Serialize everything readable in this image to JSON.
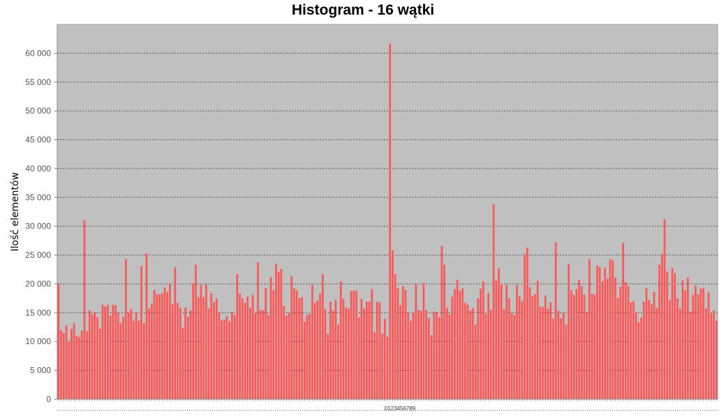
{
  "chart_data": {
    "type": "bar",
    "title": "Histogram - 16 wątki",
    "ylabel": "Ilość elementów",
    "xlabel": "",
    "x_tick_text": "0123456789",
    "ylim": [
      0,
      65000
    ],
    "y_ticks": [
      {
        "value": 0,
        "label": "0"
      },
      {
        "value": 5000,
        "label": "5 000"
      },
      {
        "value": 10000,
        "label": "10 000"
      },
      {
        "value": 15000,
        "label": "15 000"
      },
      {
        "value": 20000,
        "label": "20 000"
      },
      {
        "value": 25000,
        "label": "25 000"
      },
      {
        "value": 30000,
        "label": "30 000"
      },
      {
        "value": 35000,
        "label": "35 000"
      },
      {
        "value": 40000,
        "label": "40 000"
      },
      {
        "value": 45000,
        "label": "45 000"
      },
      {
        "value": 50000,
        "label": "50 000"
      },
      {
        "value": 55000,
        "label": "55 000"
      },
      {
        "value": 60000,
        "label": "60 000"
      }
    ],
    "grid": true,
    "colors": {
      "bar": "#ff5555",
      "plot_bg": "#c0c0c0",
      "grid": "#555555"
    },
    "values": [
      20000,
      12000,
      11500,
      12800,
      10000,
      12200,
      13200,
      11000,
      10800,
      11900,
      31000,
      11800,
      15400,
      14700,
      15100,
      14200,
      12200,
      16400,
      16100,
      16400,
      14500,
      16400,
      16300,
      15000,
      13200,
      14300,
      24300,
      15000,
      15600,
      13600,
      15100,
      13600,
      23100,
      13200,
      25300,
      15700,
      16600,
      18900,
      18200,
      18200,
      18400,
      19400,
      18600,
      20100,
      16500,
      22900,
      16700,
      15800,
      12400,
      15900,
      14300,
      15400,
      20100,
      23300,
      17700,
      19800,
      17700,
      19900,
      15700,
      18400,
      16800,
      17500,
      15000,
      13700,
      13800,
      14400,
      13500,
      15100,
      14600,
      21700,
      18300,
      17500,
      16700,
      17800,
      15900,
      18100,
      14900,
      23800,
      15500,
      15400,
      19300,
      14600,
      21200,
      18900,
      23500,
      22100,
      22600,
      16200,
      14500,
      15000,
      21300,
      19200,
      18900,
      17500,
      17700,
      13500,
      14600,
      14800,
      19800,
      16700,
      17100,
      18300,
      21700,
      15600,
      11300,
      16900,
      15400,
      17200,
      12900,
      20400,
      17400,
      15900,
      15700,
      18800,
      18800,
      18900,
      14200,
      17400,
      15700,
      16900,
      16900,
      19100,
      11600,
      16900,
      16800,
      11400,
      13900,
      10800,
      61700,
      25800,
      21700,
      19300,
      16300,
      19600,
      19000,
      15000,
      13600,
      15000,
      19900,
      15500,
      15300,
      20200,
      15400,
      14100,
      11100,
      15200,
      15100,
      14200,
      26600,
      23300,
      15900,
      14700,
      17800,
      19100,
      20700,
      18800,
      19200,
      16700,
      16400,
      15400,
      15800,
      12900,
      17500,
      19200,
      20400,
      14800,
      18400,
      15500,
      33800,
      20600,
      22700,
      20000,
      15600,
      19800,
      17500,
      14900,
      14600,
      19800,
      17900,
      17000,
      25200,
      26300,
      19400,
      17900,
      18200,
      20500,
      16000,
      16000,
      18000,
      15700,
      16800,
      14000,
      27200,
      15300,
      14000,
      15000,
      12900,
      23400,
      18900,
      18100,
      19100,
      20700,
      19600,
      18100,
      15100,
      24300,
      18300,
      18100,
      23200,
      22900,
      20400,
      22800,
      20900,
      24300,
      24100,
      21100,
      17600,
      19500,
      27100,
      20300,
      19600,
      16800,
      17000,
      15100,
      13300,
      14200,
      16900,
      19300,
      17200,
      16500,
      18600,
      15800,
      23300,
      25200,
      31200,
      22100,
      17200,
      22800,
      21800,
      17500,
      15700,
      20600,
      18900,
      21100,
      15200,
      18100,
      19700,
      18200,
      19200,
      19300,
      15700,
      18500,
      14800,
      15400,
      13600
    ]
  }
}
